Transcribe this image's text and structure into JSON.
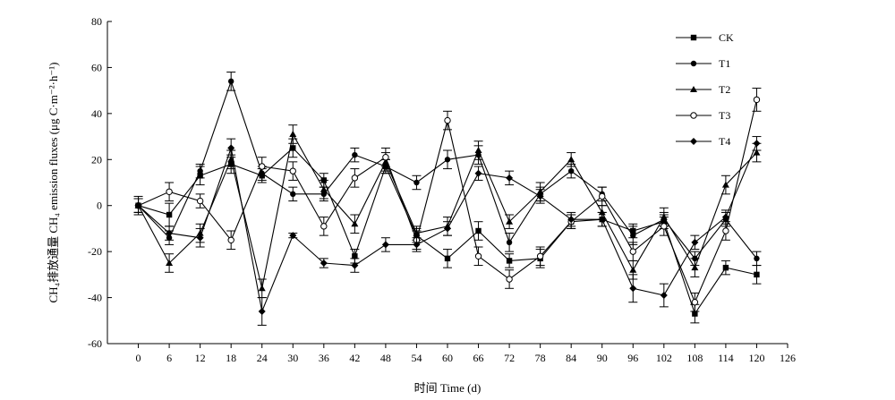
{
  "chart_data": {
    "type": "line",
    "title": "",
    "xlabel": "时间 Time (d)",
    "ylabel": "CH₄排放通量 CH₄ emission fluxes (μg C·m⁻²·h⁻¹)",
    "xlim": [
      -6,
      126
    ],
    "ylim": [
      -60,
      80
    ],
    "xticks": [
      0,
      6,
      12,
      18,
      24,
      30,
      36,
      42,
      48,
      54,
      60,
      66,
      72,
      78,
      84,
      90,
      96,
      102,
      108,
      114,
      120,
      126
    ],
    "yticks": [
      -60,
      -40,
      -20,
      0,
      20,
      40,
      60,
      80
    ],
    "grid": false,
    "legend_position": "top-right",
    "x": [
      0,
      6,
      12,
      18,
      24,
      30,
      36,
      42,
      48,
      54,
      60,
      66,
      72,
      78,
      84,
      90,
      96,
      102,
      108,
      114,
      120
    ],
    "series": [
      {
        "name": "CK",
        "marker": "square",
        "values": [
          0,
          -4,
          13,
          18,
          13,
          25,
          11,
          -22,
          17,
          -13,
          -23,
          -11,
          -24,
          -23,
          -7,
          -6,
          -11,
          -7,
          -47,
          -27,
          -30
        ],
        "errors": [
          4,
          5,
          4,
          4,
          3,
          4,
          3,
          3,
          3,
          3,
          4,
          4,
          3,
          4,
          3,
          3,
          3,
          3,
          4,
          3,
          4
        ]
      },
      {
        "name": "T1",
        "marker": "circle-filled",
        "values": [
          0,
          -14,
          15,
          54,
          14,
          5,
          5,
          22,
          17,
          10,
          20,
          22,
          -16,
          5,
          15,
          5,
          -13,
          -6,
          -23,
          -6,
          -23
        ],
        "errors": [
          3,
          3,
          3,
          4,
          3,
          3,
          3,
          3,
          3,
          3,
          4,
          4,
          4,
          3,
          3,
          3,
          4,
          3,
          3,
          3,
          3
        ]
      },
      {
        "name": "T2",
        "marker": "triangle",
        "values": [
          0,
          -25,
          -12,
          20,
          -36,
          31,
          7,
          -8,
          19,
          -12,
          -9,
          24,
          -7,
          6,
          20,
          -3,
          -28,
          -5,
          -27,
          9,
          23
        ],
        "errors": [
          3,
          4,
          4,
          4,
          4,
          4,
          4,
          4,
          4,
          3,
          4,
          4,
          3,
          4,
          3,
          3,
          4,
          4,
          4,
          4,
          4
        ]
      },
      {
        "name": "T3",
        "marker": "circle-open",
        "values": [
          0,
          6,
          2,
          -15,
          17,
          15,
          -9,
          12,
          21,
          -15,
          37,
          -22,
          -32,
          -22,
          -7,
          4,
          -20,
          -9,
          -42,
          -11,
          46
        ],
        "errors": [
          3,
          4,
          3,
          4,
          4,
          4,
          4,
          4,
          4,
          4,
          4,
          4,
          4,
          4,
          3,
          4,
          4,
          4,
          4,
          4,
          5
        ]
      },
      {
        "name": "T4",
        "marker": "diamond",
        "values": [
          0,
          -12,
          -14,
          25,
          -46,
          -13,
          -25,
          -26,
          -17,
          -17,
          -10,
          14,
          12,
          4,
          -6,
          -6,
          -36,
          -39,
          -16,
          -5,
          27
        ],
        "errors": [
          3,
          3,
          4,
          4,
          6,
          1,
          2,
          3,
          3,
          3,
          3,
          3,
          3,
          3,
          3,
          3,
          6,
          5,
          3,
          3,
          3
        ]
      }
    ]
  }
}
